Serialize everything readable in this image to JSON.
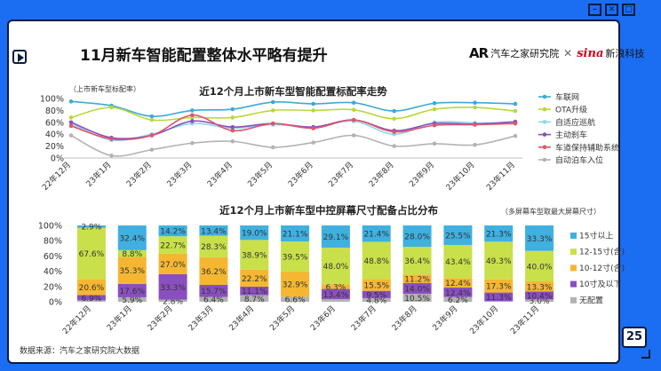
{
  "page": {
    "title": "11月新车智能配置整体水平略有提升",
    "brand_autohome": "汽车之家研究院",
    "brand_sina": "新浪科技",
    "sina_mark": "sina",
    "page_number": "25",
    "source": "数据来源：汽车之家研究院大数据"
  },
  "colors": {
    "background": "#1b6df2",
    "frame": "#0d1b3d"
  },
  "chart_data": [
    {
      "type": "line",
      "title": "近12个月上市新车型智能配置标配率走势",
      "ylabel": "（上市新车型标配率）",
      "ylim": [
        0,
        100
      ],
      "yticks": [
        "0%",
        "20%",
        "40%",
        "60%",
        "80%",
        "100%"
      ],
      "categories": [
        "22年12月",
        "23年1月",
        "23年2月",
        "23年3月",
        "23年4月",
        "23年5月",
        "23年6月",
        "23年7月",
        "23年8月",
        "23年9月",
        "23年10月",
        "23年11月"
      ],
      "legend_position": "right",
      "series": [
        {
          "name": "车联网",
          "color": "#3fa9d8",
          "values": [
            95,
            88,
            70,
            80,
            82,
            94,
            91,
            93,
            79,
            92,
            93,
            91
          ]
        },
        {
          "name": "OTA升级",
          "color": "#b7d93a",
          "values": [
            68,
            85,
            64,
            68,
            68,
            80,
            80,
            81,
            66,
            82,
            85,
            79
          ]
        },
        {
          "name": "自适应巡航",
          "color": "#8dd8e8",
          "values": [
            58,
            30,
            40,
            58,
            50,
            56,
            52,
            62,
            40,
            60,
            59,
            59
          ]
        },
        {
          "name": "主动刹车",
          "color": "#8a4fbf",
          "values": [
            60,
            34,
            38,
            62,
            52,
            58,
            52,
            64,
            46,
            58,
            57,
            61
          ]
        },
        {
          "name": "车道保持辅助系统",
          "color": "#e0556b",
          "values": [
            54,
            32,
            38,
            72,
            46,
            58,
            50,
            64,
            44,
            55,
            56,
            58
          ]
        },
        {
          "name": "自动泊车入位",
          "color": "#b3b3b3",
          "values": [
            38,
            4,
            14,
            25,
            28,
            18,
            26,
            38,
            20,
            24,
            22,
            37
          ]
        }
      ]
    },
    {
      "type": "bar",
      "stacked": "percent",
      "title": "近12个月上市新车型中控屏幕尺寸配备占比分布",
      "ylabel": "（多屏幕车型取最大屏幕尺寸）",
      "ylim": [
        0,
        100
      ],
      "yticks": [
        "0%",
        "20%",
        "40%",
        "60%",
        "80%",
        "100%"
      ],
      "categories": [
        "22年12月",
        "23年1月",
        "23年2月",
        "23年3月",
        "23年4月",
        "23年5月",
        "23年6月",
        "23年7月",
        "23年8月",
        "23年9月",
        "23年10月",
        "23年11月"
      ],
      "legend_position": "right",
      "series": [
        {
          "name": "无配置",
          "color": "#b3b3b3",
          "values": [
            2.0,
            5.9,
            2.8,
            6.4,
            8.7,
            6.6,
            3.4,
            4.8,
            10.5,
            6.2,
            0.8,
            3.0
          ],
          "labels": [
            "",
            "5.9%",
            "2.8%",
            "6.4%",
            "8.7%",
            "6.6%",
            "",
            "4.8%",
            "10.5%",
            "6.2%",
            "",
            "3.0%"
          ]
        },
        {
          "name": "10寸及以下",
          "color": "#8a4fbf",
          "values": [
            6.9,
            17.6,
            33.3,
            15.7,
            11.1,
            0.0,
            13.4,
            9.5,
            14.0,
            12.4,
            11.3,
            10.4
          ],
          "labels": [
            "6.9%",
            "17.6%",
            "33.3%",
            "15.7%",
            "11.1%",
            "",
            "13.4%",
            "9.5%",
            "14.0%",
            "12.4%",
            "11.3%",
            "10.4%"
          ]
        },
        {
          "name": "10-12寸(含)",
          "color": "#f5b731",
          "values": [
            20.6,
            35.3,
            27.0,
            36.2,
            22.2,
            32.9,
            6.3,
            15.5,
            11.2,
            12.4,
            17.3,
            13.3
          ],
          "labels": [
            "20.6%",
            "35.3%",
            "27.0%",
            "36.2%",
            "22.2%",
            "32.9%",
            "6.3%",
            "15.5%",
            "11.2%",
            "12.4%",
            "17.3%",
            "13.3%"
          ]
        },
        {
          "name": "12-15寸(含)",
          "color": "#c9e04a",
          "values": [
            67.6,
            8.8,
            22.7,
            28.3,
            38.9,
            39.5,
            48.0,
            48.8,
            36.4,
            43.4,
            49.3,
            40.0
          ],
          "labels": [
            "67.6%",
            "8.8%",
            "22.7%",
            "28.3%",
            "38.9%",
            "39.5%",
            "48.0%",
            "48.8%",
            "36.4%",
            "43.4%",
            "49.3%",
            "40.0%"
          ]
        },
        {
          "name": "15寸以上",
          "color": "#3fb0e0",
          "values": [
            2.9,
            32.4,
            14.2,
            13.4,
            19.0,
            21.1,
            29.1,
            21.4,
            28.0,
            25.5,
            21.3,
            33.3
          ],
          "labels": [
            "2.9%",
            "32.4%",
            "14.2%",
            "13.4%",
            "19.0%",
            "21.1%",
            "29.1%",
            "21.4%",
            "28.0%",
            "25.5%",
            "21.3%",
            "33.3%"
          ]
        }
      ]
    }
  ]
}
